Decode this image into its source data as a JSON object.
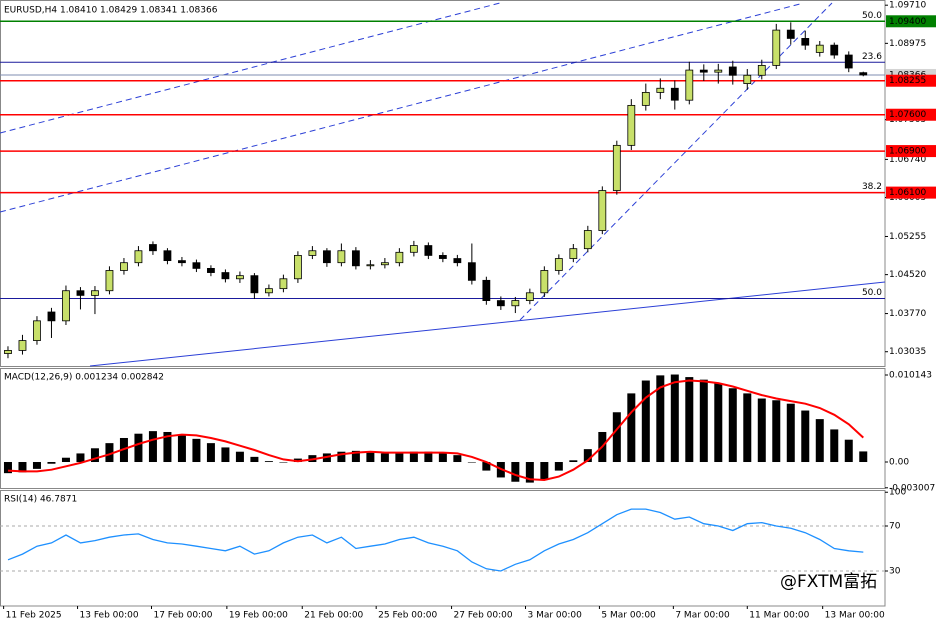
{
  "chart_data": [
    {
      "type": "candlestick",
      "title": "EURUSD,H4  1.08410 1.08429 1.08341 1.08366",
      "open": [
        1.03,
        1.0306,
        1.0325,
        1.038,
        1.0363,
        1.0421,
        1.0412,
        1.0421,
        1.046,
        1.0475,
        1.051,
        1.0498,
        1.0479,
        1.0475,
        1.0464,
        1.0456,
        1.0444,
        1.045,
        1.0417,
        1.0425,
        1.0444,
        1.0489,
        1.0498,
        1.0475,
        1.0498,
        1.0469,
        1.0471,
        1.0475,
        1.0495,
        1.0508,
        1.0489,
        1.0483,
        1.0475,
        1.0441,
        1.0402,
        1.0392,
        1.0402,
        1.0417,
        1.046,
        1.0483,
        1.0502,
        1.0537,
        1.0614,
        1.0701,
        1.0778,
        1.0803,
        1.0811,
        1.0788,
        1.0846,
        1.0842,
        1.0852,
        1.082,
        1.0836,
        1.0855,
        1.0923,
        1.0907,
        1.088,
        1.0894,
        1.0875,
        1.0841
      ],
      "high": [
        1.0314,
        1.0336,
        1.0372,
        1.0388,
        1.0431,
        1.0428,
        1.043,
        1.0468,
        1.0484,
        1.0507,
        1.0516,
        1.0503,
        1.0486,
        1.0481,
        1.047,
        1.0462,
        1.0458,
        1.0455,
        1.0433,
        1.0452,
        1.0497,
        1.0507,
        1.0503,
        1.0512,
        1.0505,
        1.048,
        1.0484,
        1.0503,
        1.0517,
        1.0514,
        1.0495,
        1.049,
        1.0512,
        1.0448,
        1.041,
        1.0409,
        1.0425,
        1.0468,
        1.0491,
        1.0511,
        1.0546,
        1.0622,
        1.071,
        1.079,
        1.082,
        1.083,
        1.0826,
        1.0862,
        1.0857,
        1.0858,
        1.0864,
        1.0848,
        1.0866,
        1.0935,
        1.0938,
        1.0922,
        1.0902,
        1.0899,
        1.0882,
        1.08429
      ],
      "low": [
        1.0291,
        1.0298,
        1.0317,
        1.033,
        1.0355,
        1.0385,
        1.0376,
        1.0414,
        1.0452,
        1.0468,
        1.049,
        1.0472,
        1.0468,
        1.0457,
        1.0449,
        1.0437,
        1.0436,
        1.0405,
        1.041,
        1.0418,
        1.0436,
        1.0482,
        1.0467,
        1.0468,
        1.0462,
        1.0462,
        1.0464,
        1.0468,
        1.0487,
        1.0482,
        1.0476,
        1.0468,
        1.0433,
        1.0394,
        1.0384,
        1.0378,
        1.0395,
        1.0409,
        1.0452,
        1.0476,
        1.0495,
        1.053,
        1.0606,
        1.0692,
        1.0768,
        1.079,
        1.077,
        1.078,
        1.0825,
        1.082,
        1.0818,
        1.0808,
        1.0828,
        1.0848,
        1.0895,
        1.0885,
        1.0872,
        1.0868,
        1.0842,
        1.08341
      ],
      "close": [
        1.0306,
        1.0325,
        1.0363,
        1.0363,
        1.0421,
        1.0412,
        1.0421,
        1.046,
        1.0475,
        1.0498,
        1.0498,
        1.0479,
        1.0475,
        1.0464,
        1.0456,
        1.0444,
        1.045,
        1.0417,
        1.0425,
        1.0444,
        1.0489,
        1.0498,
        1.0475,
        1.0498,
        1.0469,
        1.0471,
        1.0475,
        1.0495,
        1.0508,
        1.0489,
        1.0483,
        1.0475,
        1.0441,
        1.0402,
        1.0392,
        1.0402,
        1.0417,
        1.046,
        1.0483,
        1.0502,
        1.0537,
        1.0614,
        1.0701,
        1.0778,
        1.0803,
        1.0811,
        1.0788,
        1.0846,
        1.0842,
        1.0846,
        1.0836,
        1.0836,
        1.0855,
        1.0923,
        1.0907,
        1.0894,
        1.0894,
        1.0875,
        1.085,
        1.08366
      ],
      "up_color": "#c8e06a",
      "down_color": "#000000",
      "xlim": [
        -0.55,
        60.5
      ],
      "ylim": [
        1.0276,
        1.0981
      ],
      "yticks": [
        {
          "value": 1.0971,
          "label": "1.09710"
        },
        {
          "value": 1.08975,
          "label": "1.08975"
        },
        {
          "value": 1.07505,
          "label": "1.07505"
        },
        {
          "value": 1.0674,
          "label": "1.06740"
        },
        {
          "value": 1.06005,
          "label": "1.06005"
        },
        {
          "value": 1.05255,
          "label": "1.05255"
        },
        {
          "value": 1.0452,
          "label": "1.04520"
        },
        {
          "value": 1.0377,
          "label": "1.03770"
        },
        {
          "value": 1.03035,
          "label": "1.03035"
        }
      ],
      "fib_levels": [
        {
          "value": 1.094,
          "label": "50.0"
        },
        {
          "value": 1.0861,
          "label": "23.6"
        },
        {
          "value": 1.061,
          "label": "38.2"
        },
        {
          "value": 1.0406,
          "label": "50.0"
        }
      ],
      "fib_color": "#1a1a9c",
      "levels": [
        {
          "value": 1.094,
          "label": "1.09400",
          "color": "#008000"
        },
        {
          "value": 1.08255,
          "label": "1.08255",
          "color": "#ff0000"
        },
        {
          "value": 1.076,
          "label": "1.07600",
          "color": "#ff0000"
        },
        {
          "value": 1.069,
          "label": "1.06900",
          "color": "#ff0000"
        },
        {
          "value": 1.061,
          "label": "1.06100",
          "color": "#ff0000"
        }
      ]
    },
    {
      "type": "macd",
      "title": "MACD(12,26,9) 0.001234 0.002842",
      "hist_color": "#000000",
      "signal_color": "#ff0000",
      "values": [
        -0.0013,
        -0.0012,
        -0.0008,
        -0.0002,
        0.0005,
        0.001,
        0.0016,
        0.0022,
        0.0028,
        0.0033,
        0.0036,
        0.0035,
        0.0032,
        0.0027,
        0.0022,
        0.0017,
        0.0012,
        0.0006,
        0.0001,
        0.0,
        0.0004,
        0.0008,
        0.001,
        0.0012,
        0.0013,
        0.0011,
        0.001,
        0.0011,
        0.0012,
        0.0012,
        0.0011,
        0.0008,
        0.0,
        -0.001,
        -0.0018,
        -0.0023,
        -0.0024,
        -0.002,
        -0.001,
        0.0002,
        0.0015,
        0.0035,
        0.0058,
        0.008,
        0.0095,
        0.0101,
        0.0102,
        0.0099,
        0.0096,
        0.0092,
        0.0086,
        0.008,
        0.0074,
        0.0072,
        0.0068,
        0.006,
        0.005,
        0.0038,
        0.0026,
        0.001234
      ],
      "signal": [
        -0.001,
        -0.0011,
        -0.0011,
        -0.0009,
        -0.0005,
        -0.0001,
        0.0004,
        0.0009,
        0.0015,
        0.0021,
        0.0026,
        0.003,
        0.0032,
        0.0031,
        0.0028,
        0.0024,
        0.0019,
        0.0014,
        0.0008,
        0.0003,
        0.0001,
        0.0003,
        0.0006,
        0.0009,
        0.0011,
        0.0012,
        0.0011,
        0.0011,
        0.0011,
        0.0011,
        0.0011,
        0.001,
        0.0006,
        0.0,
        -0.0008,
        -0.0015,
        -0.002,
        -0.0021,
        -0.0017,
        -0.0009,
        0.0002,
        0.0018,
        0.0038,
        0.0058,
        0.0075,
        0.0087,
        0.0093,
        0.0095,
        0.0094,
        0.0092,
        0.0088,
        0.0083,
        0.0078,
        0.0074,
        0.0071,
        0.0068,
        0.0063,
        0.0055,
        0.0044,
        0.002842
      ],
      "ylim": [
        -0.00303,
        0.01096
      ],
      "yticks": [
        0.010143,
        {
          "value": 0,
          "label": "0.00"
        },
        -0.003007
      ]
    },
    {
      "type": "line",
      "title": "RSI(14) 46.7871",
      "color": "#1e90ff",
      "values": [
        40,
        45,
        52,
        55,
        62,
        55,
        57,
        60,
        62,
        63,
        58,
        55,
        54,
        52,
        50,
        48,
        52,
        45,
        48,
        55,
        60,
        62,
        55,
        60,
        50,
        52,
        54,
        58,
        60,
        55,
        52,
        48,
        38,
        32,
        30,
        36,
        40,
        48,
        54,
        58,
        64,
        72,
        80,
        85,
        85,
        82,
        76,
        78,
        72,
        70,
        66,
        72,
        73,
        70,
        68,
        64,
        58,
        50,
        48,
        46.7871
      ],
      "ylim": [
        -1.1,
        101.1
      ],
      "yticks": [
        100,
        70,
        30
      ],
      "level_lines": [
        70,
        30
      ],
      "xticks": [
        {
          "value": -0.3,
          "label": "11 Feb 2025"
        },
        {
          "value": 4.8,
          "label": "13 Feb 00:00"
        },
        {
          "value": 9.9,
          "label": "17 Feb 00:00"
        },
        {
          "value": 15.1,
          "label": "19 Feb 00:00"
        },
        {
          "value": 20.3,
          "label": "21 Feb 00:00"
        },
        {
          "value": 25.4,
          "label": "25 Feb 00:00"
        },
        {
          "value": 30.6,
          "label": "27 Feb 00:00"
        },
        {
          "value": 35.7,
          "label": "3 Mar 00:00"
        },
        {
          "value": 40.8,
          "label": "5 Mar 00:00"
        },
        {
          "value": 45.9,
          "label": "7 Mar 00:00"
        },
        {
          "value": 51,
          "label": "11 Mar 00:00"
        },
        {
          "value": 56.2,
          "label": "13 Mar 00:00"
        }
      ],
      "watermark": "@FXTM富拓"
    }
  ]
}
